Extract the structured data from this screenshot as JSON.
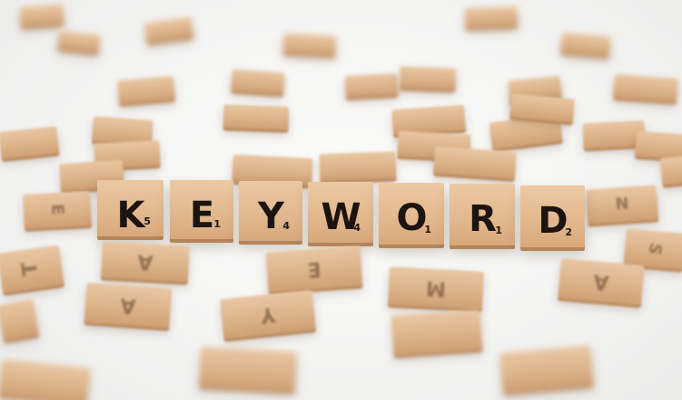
{
  "word": [
    {
      "letter": "K",
      "points": "5"
    },
    {
      "letter": "E",
      "points": "1"
    },
    {
      "letter": "Y",
      "points": "4"
    },
    {
      "letter": "W",
      "points": "4"
    },
    {
      "letter": "O",
      "points": "1"
    },
    {
      "letter": "R",
      "points": "1"
    },
    {
      "letter": "D",
      "points": "2"
    }
  ],
  "scattered_letters": [
    "A",
    "T",
    "E",
    "A",
    "Y",
    "M",
    "A",
    "N",
    "S",
    "E"
  ],
  "colors": {
    "background": "#f3f3f2",
    "tile_wood": "#e2b78d",
    "tile_edge": "#b5855a",
    "letter_ink": "#1c1410"
  }
}
